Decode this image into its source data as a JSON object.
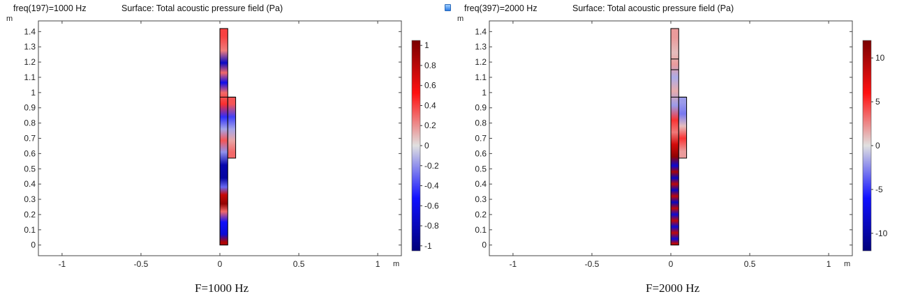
{
  "panels": [
    {
      "freq_label": "freq(197)=1000 Hz",
      "surface_label": "Surface: Total acoustic pressure field (Pa)",
      "caption": "F=1000 Hz",
      "axis_unit": "m"
    },
    {
      "freq_label": "freq(397)=2000 Hz",
      "surface_label": "Surface: Total acoustic pressure field (Pa)",
      "caption": "F=2000 Hz",
      "axis_unit": "m"
    }
  ],
  "colors": {
    "max_red": "#7a0000",
    "red": "#ff1010",
    "mid": "#e0e0e0",
    "blue": "#1010ff",
    "min_blue": "#00007a",
    "outline": "#000000"
  },
  "chart_data": [
    {
      "type": "heatmap",
      "title": "Surface: Total acoustic pressure field (Pa)",
      "subtitle": "freq(197)=1000 Hz",
      "x_unit": "m",
      "y_unit": "m",
      "xlim": [
        -1.15,
        1.15
      ],
      "ylim": [
        -0.07,
        1.47
      ],
      "x_ticks": [
        -1,
        -0.5,
        0,
        0.5,
        1
      ],
      "x_tick_labels": [
        "-1",
        "-0.5",
        "0",
        "0.5",
        "1"
      ],
      "y_ticks": [
        0,
        0.1,
        0.2,
        0.3,
        0.4,
        0.5,
        0.6,
        0.7,
        0.8,
        0.9,
        1,
        1.1,
        1.2,
        1.3,
        1.4
      ],
      "y_tick_labels": [
        "0",
        "0.1",
        "0.2",
        "0.3",
        "0.4",
        "0.5",
        "0.6",
        "0.7",
        "0.8",
        "0.9",
        "1",
        "1.1",
        "1.2",
        "1.3",
        "1.4"
      ],
      "colorbar": {
        "range": [
          -1.05,
          1.05
        ],
        "ticks": [
          1,
          0.8,
          0.6,
          0.4,
          0.2,
          0,
          -0.2,
          -0.4,
          -0.6,
          -0.8,
          -1
        ],
        "tick_labels": [
          "1",
          "0.8",
          "0.6",
          "0.4",
          "0.2",
          "0",
          "-0.2",
          "-0.4",
          "-0.6",
          "-0.8",
          "-1"
        ]
      },
      "geometry": {
        "pipe": {
          "x": [
            0,
            0.05
          ],
          "y": [
            0,
            1.42
          ]
        },
        "side_chamber": {
          "x": [
            0.05,
            0.1
          ],
          "y": [
            0.57,
            0.97
          ]
        }
      },
      "pipe_field": [
        {
          "y": [
            0.0,
            0.04
          ],
          "value": 0.85
        },
        {
          "y": [
            0.04,
            0.1
          ],
          "value": -0.7
        },
        {
          "y": [
            0.1,
            0.2
          ],
          "value": -0.55
        },
        {
          "y": [
            0.2,
            0.24
          ],
          "value": 0.3
        },
        {
          "y": [
            0.24,
            0.3
          ],
          "value": 0.95
        },
        {
          "y": [
            0.3,
            0.36
          ],
          "value": 0.75
        },
        {
          "y": [
            0.36,
            0.4
          ],
          "value": -0.3
        },
        {
          "y": [
            0.4,
            0.48
          ],
          "value": -0.9
        },
        {
          "y": [
            0.48,
            0.57
          ],
          "value": -0.85
        },
        {
          "y": [
            0.57,
            0.65
          ],
          "value": -0.2
        },
        {
          "y": [
            0.65,
            0.72
          ],
          "value": 0.35
        },
        {
          "y": [
            0.72,
            0.8
          ],
          "value": -0.15
        },
        {
          "y": [
            0.8,
            0.88
          ],
          "value": -0.45
        },
        {
          "y": [
            0.88,
            0.97
          ],
          "value": 0.45
        },
        {
          "y": [
            0.97,
            1.03
          ],
          "value": 0.3
        },
        {
          "y": [
            1.03,
            1.1
          ],
          "value": -0.6
        },
        {
          "y": [
            1.1,
            1.16
          ],
          "value": 0.3
        },
        {
          "y": [
            1.16,
            1.23
          ],
          "value": -0.75
        },
        {
          "y": [
            1.23,
            1.32
          ],
          "value": 0.25
        },
        {
          "y": [
            1.32,
            1.42
          ],
          "value": 0.4
        }
      ],
      "chamber_field": [
        {
          "y": [
            0.57,
            0.65
          ],
          "value": 0.3
        },
        {
          "y": [
            0.65,
            0.72
          ],
          "value": 0.15
        },
        {
          "y": [
            0.72,
            0.8
          ],
          "value": -0.15
        },
        {
          "y": [
            0.8,
            0.88
          ],
          "value": -0.4
        },
        {
          "y": [
            0.88,
            0.97
          ],
          "value": 0.35
        }
      ]
    },
    {
      "type": "heatmap",
      "title": "Surface: Total acoustic pressure field (Pa)",
      "subtitle": "freq(397)=2000 Hz",
      "x_unit": "m",
      "y_unit": "m",
      "xlim": [
        -1.15,
        1.15
      ],
      "ylim": [
        -0.07,
        1.47
      ],
      "x_ticks": [
        -1,
        -0.5,
        0,
        0.5,
        1
      ],
      "x_tick_labels": [
        "-1",
        "-0.5",
        "0",
        "0.5",
        "1"
      ],
      "y_ticks": [
        0,
        0.1,
        0.2,
        0.3,
        0.4,
        0.5,
        0.6,
        0.7,
        0.8,
        0.9,
        1,
        1.1,
        1.2,
        1.3,
        1.4
      ],
      "y_tick_labels": [
        "0",
        "0.1",
        "0.2",
        "0.3",
        "0.4",
        "0.5",
        "0.6",
        "0.7",
        "0.8",
        "0.9",
        "1",
        "1.1",
        "1.2",
        "1.3",
        "1.4"
      ],
      "colorbar": {
        "range": [
          -12,
          12
        ],
        "ticks": [
          10,
          5,
          0,
          -5,
          -10
        ],
        "tick_labels": [
          "10",
          "5",
          "0",
          "-5",
          "-10"
        ]
      },
      "geometry": {
        "pipe": {
          "x": [
            0,
            0.05
          ],
          "y": [
            0,
            1.42
          ]
        },
        "side_chamber": {
          "x": [
            0.05,
            0.1
          ],
          "y": [
            0.57,
            0.97
          ]
        },
        "interior_lines": [
          1.15,
          1.22
        ]
      },
      "pipe_field": [
        {
          "y": [
            0.0,
            0.02
          ],
          "value": 9
        },
        {
          "y": [
            0.02,
            0.06
          ],
          "value": -8
        },
        {
          "y": [
            0.06,
            0.1
          ],
          "value": 9
        },
        {
          "y": [
            0.1,
            0.14
          ],
          "value": -8
        },
        {
          "y": [
            0.14,
            0.18
          ],
          "value": 9
        },
        {
          "y": [
            0.18,
            0.22
          ],
          "value": -8
        },
        {
          "y": [
            0.22,
            0.26
          ],
          "value": 9
        },
        {
          "y": [
            0.26,
            0.3
          ],
          "value": -9
        },
        {
          "y": [
            0.3,
            0.34
          ],
          "value": 9
        },
        {
          "y": [
            0.34,
            0.38
          ],
          "value": -9
        },
        {
          "y": [
            0.38,
            0.42
          ],
          "value": 9
        },
        {
          "y": [
            0.42,
            0.46
          ],
          "value": -9
        },
        {
          "y": [
            0.46,
            0.5
          ],
          "value": 10
        },
        {
          "y": [
            0.5,
            0.54
          ],
          "value": -8
        },
        {
          "y": [
            0.54,
            0.62
          ],
          "value": 11
        },
        {
          "y": [
            0.62,
            0.7
          ],
          "value": 8
        },
        {
          "y": [
            0.7,
            0.78
          ],
          "value": 3
        },
        {
          "y": [
            0.78,
            0.86
          ],
          "value": 5
        },
        {
          "y": [
            0.86,
            0.97
          ],
          "value": -2
        },
        {
          "y": [
            0.97,
            1.05
          ],
          "value": 1.5
        },
        {
          "y": [
            1.05,
            1.15
          ],
          "value": -1.5
        },
        {
          "y": [
            1.15,
            1.22
          ],
          "value": 2
        },
        {
          "y": [
            1.22,
            1.3
          ],
          "value": 1
        },
        {
          "y": [
            1.3,
            1.42
          ],
          "value": 2
        }
      ],
      "chamber_field": [
        {
          "y": [
            0.57,
            0.66
          ],
          "value": 2
        },
        {
          "y": [
            0.66,
            0.74
          ],
          "value": 5
        },
        {
          "y": [
            0.74,
            0.82
          ],
          "value": 1
        },
        {
          "y": [
            0.82,
            0.9
          ],
          "value": -3
        },
        {
          "y": [
            0.9,
            0.97
          ],
          "value": -2
        }
      ]
    }
  ]
}
